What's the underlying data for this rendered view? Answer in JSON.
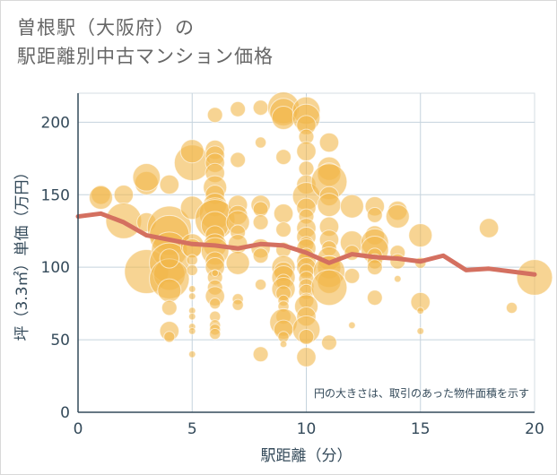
{
  "title": {
    "line1": "曽根駅（大阪府）の",
    "line2": "駅距離別中古マンション価格"
  },
  "chart_data": {
    "type": "scatter",
    "xlabel": "駅距離（分）",
    "ylabel": "坪（3.3㎡）単価（万円）",
    "xlim": [
      0,
      20
    ],
    "ylim": [
      0,
      220
    ],
    "xticks": [
      "0",
      "5",
      "10",
      "15",
      "20"
    ],
    "yticks": [
      "0",
      "50",
      "100",
      "150",
      "200"
    ],
    "grid": true,
    "note": "円の大きさは、取引のあった物件面積を示す",
    "colors": {
      "bubble": "#f2b84b",
      "line": "#d47060"
    },
    "bubbles": [
      {
        "x": 1,
        "y": 150,
        "s": 4
      },
      {
        "x": 1,
        "y": 148,
        "s": 5
      },
      {
        "x": 2,
        "y": 150,
        "s": 4
      },
      {
        "x": 2,
        "y": 132,
        "s": 8
      },
      {
        "x": 3,
        "y": 97,
        "s": 10
      },
      {
        "x": 3,
        "y": 158,
        "s": 5
      },
      {
        "x": 3,
        "y": 162,
        "s": 6
      },
      {
        "x": 3,
        "y": 131,
        "s": 4
      },
      {
        "x": 4,
        "y": 127,
        "s": 10
      },
      {
        "x": 4,
        "y": 122,
        "s": 9
      },
      {
        "x": 4,
        "y": 112,
        "s": 8
      },
      {
        "x": 4,
        "y": 103,
        "s": 9
      },
      {
        "x": 4,
        "y": 95,
        "s": 7
      },
      {
        "x": 4,
        "y": 92,
        "s": 9
      },
      {
        "x": 4,
        "y": 84,
        "s": 5
      },
      {
        "x": 4,
        "y": 72,
        "s": 3
      },
      {
        "x": 4,
        "y": 56,
        "s": 4
      },
      {
        "x": 4,
        "y": 52,
        "s": 2
      },
      {
        "x": 4,
        "y": 157,
        "s": 4
      },
      {
        "x": 4,
        "y": 106,
        "s": 4
      },
      {
        "x": 5,
        "y": 172,
        "s": 8
      },
      {
        "x": 5,
        "y": 180,
        "s": 5
      },
      {
        "x": 5,
        "y": 141,
        "s": 5
      },
      {
        "x": 5,
        "y": 115,
        "s": 5
      },
      {
        "x": 5,
        "y": 113,
        "s": 4
      },
      {
        "x": 5,
        "y": 105,
        "s": 2
      },
      {
        "x": 5,
        "y": 85,
        "s": 1
      },
      {
        "x": 5,
        "y": 80,
        "s": 1
      },
      {
        "x": 5,
        "y": 70,
        "s": 1
      },
      {
        "x": 5,
        "y": 66,
        "s": 1
      },
      {
        "x": 5,
        "y": 59,
        "s": 1
      },
      {
        "x": 5,
        "y": 56,
        "s": 1
      },
      {
        "x": 5,
        "y": 40,
        "s": 1
      },
      {
        "x": 5,
        "y": 98,
        "s": 2
      },
      {
        "x": 6,
        "y": 205,
        "s": 3
      },
      {
        "x": 6,
        "y": 181,
        "s": 4
      },
      {
        "x": 6,
        "y": 177,
        "s": 4
      },
      {
        "x": 6,
        "y": 172,
        "s": 4
      },
      {
        "x": 6,
        "y": 165,
        "s": 4
      },
      {
        "x": 6,
        "y": 155,
        "s": 5
      },
      {
        "x": 6,
        "y": 150,
        "s": 4
      },
      {
        "x": 6,
        "y": 143,
        "s": 5
      },
      {
        "x": 6,
        "y": 137,
        "s": 7
      },
      {
        "x": 6,
        "y": 133,
        "s": 9
      },
      {
        "x": 6,
        "y": 129,
        "s": 6
      },
      {
        "x": 6,
        "y": 122,
        "s": 4
      },
      {
        "x": 6,
        "y": 115,
        "s": 5
      },
      {
        "x": 6,
        "y": 111,
        "s": 6
      },
      {
        "x": 6,
        "y": 104,
        "s": 4
      },
      {
        "x": 6,
        "y": 100,
        "s": 4
      },
      {
        "x": 6,
        "y": 93,
        "s": 3
      },
      {
        "x": 6,
        "y": 86,
        "s": 3
      },
      {
        "x": 6,
        "y": 80,
        "s": 4
      },
      {
        "x": 6,
        "y": 75,
        "s": 2
      },
      {
        "x": 6,
        "y": 66,
        "s": 2
      },
      {
        "x": 6,
        "y": 60,
        "s": 2
      },
      {
        "x": 6,
        "y": 57,
        "s": 2
      },
      {
        "x": 6,
        "y": 54,
        "s": 2
      },
      {
        "x": 6,
        "y": 96,
        "s": 1
      },
      {
        "x": 7,
        "y": 209,
        "s": 3
      },
      {
        "x": 7,
        "y": 174,
        "s": 3
      },
      {
        "x": 7,
        "y": 143,
        "s": 4
      },
      {
        "x": 7,
        "y": 136,
        "s": 4
      },
      {
        "x": 7,
        "y": 131,
        "s": 5
      },
      {
        "x": 7,
        "y": 124,
        "s": 3
      },
      {
        "x": 7,
        "y": 116,
        "s": 4
      },
      {
        "x": 7,
        "y": 103,
        "s": 5
      },
      {
        "x": 7,
        "y": 78,
        "s": 2
      },
      {
        "x": 7,
        "y": 74,
        "s": 2
      },
      {
        "x": 8,
        "y": 210,
        "s": 3
      },
      {
        "x": 8,
        "y": 186,
        "s": 2
      },
      {
        "x": 8,
        "y": 143,
        "s": 4
      },
      {
        "x": 8,
        "y": 140,
        "s": 3
      },
      {
        "x": 8,
        "y": 131,
        "s": 3
      },
      {
        "x": 8,
        "y": 113,
        "s": 4
      },
      {
        "x": 8,
        "y": 108,
        "s": 3
      },
      {
        "x": 8,
        "y": 88,
        "s": 2
      },
      {
        "x": 8,
        "y": 40,
        "s": 3
      },
      {
        "x": 9,
        "y": 210,
        "s": 7
      },
      {
        "x": 9,
        "y": 207,
        "s": 6
      },
      {
        "x": 9,
        "y": 203,
        "s": 5
      },
      {
        "x": 9,
        "y": 176,
        "s": 3
      },
      {
        "x": 9,
        "y": 137,
        "s": 4
      },
      {
        "x": 9,
        "y": 126,
        "s": 3
      },
      {
        "x": 9,
        "y": 112,
        "s": 3
      },
      {
        "x": 9,
        "y": 100,
        "s": 5
      },
      {
        "x": 9,
        "y": 97,
        "s": 4
      },
      {
        "x": 9,
        "y": 93,
        "s": 5
      },
      {
        "x": 9,
        "y": 90,
        "s": 3
      },
      {
        "x": 9,
        "y": 85,
        "s": 5
      },
      {
        "x": 9,
        "y": 82,
        "s": 3
      },
      {
        "x": 9,
        "y": 77,
        "s": 2
      },
      {
        "x": 9,
        "y": 73,
        "s": 2
      },
      {
        "x": 9,
        "y": 66,
        "s": 3
      },
      {
        "x": 9,
        "y": 62,
        "s": 6
      },
      {
        "x": 9,
        "y": 57,
        "s": 4
      },
      {
        "x": 9,
        "y": 52,
        "s": 2
      },
      {
        "x": 9,
        "y": 47,
        "s": 1
      },
      {
        "x": 10,
        "y": 208,
        "s": 6
      },
      {
        "x": 10,
        "y": 203,
        "s": 6
      },
      {
        "x": 10,
        "y": 198,
        "s": 4
      },
      {
        "x": 10,
        "y": 190,
        "s": 3
      },
      {
        "x": 10,
        "y": 180,
        "s": 4
      },
      {
        "x": 10,
        "y": 168,
        "s": 3
      },
      {
        "x": 10,
        "y": 157,
        "s": 4
      },
      {
        "x": 10,
        "y": 149,
        "s": 6
      },
      {
        "x": 10,
        "y": 141,
        "s": 4
      },
      {
        "x": 10,
        "y": 135,
        "s": 3
      },
      {
        "x": 10,
        "y": 127,
        "s": 4
      },
      {
        "x": 10,
        "y": 121,
        "s": 4
      },
      {
        "x": 10,
        "y": 116,
        "s": 3
      },
      {
        "x": 10,
        "y": 113,
        "s": 4
      },
      {
        "x": 10,
        "y": 108,
        "s": 3
      },
      {
        "x": 10,
        "y": 104,
        "s": 4
      },
      {
        "x": 10,
        "y": 100,
        "s": 4
      },
      {
        "x": 10,
        "y": 97,
        "s": 3
      },
      {
        "x": 10,
        "y": 92,
        "s": 3
      },
      {
        "x": 10,
        "y": 87,
        "s": 3
      },
      {
        "x": 10,
        "y": 83,
        "s": 3
      },
      {
        "x": 10,
        "y": 77,
        "s": 3
      },
      {
        "x": 10,
        "y": 73,
        "s": 5
      },
      {
        "x": 10,
        "y": 66,
        "s": 4
      },
      {
        "x": 10,
        "y": 57,
        "s": 6
      },
      {
        "x": 10,
        "y": 52,
        "s": 3
      },
      {
        "x": 10,
        "y": 38,
        "s": 4
      },
      {
        "x": 11,
        "y": 186,
        "s": 4
      },
      {
        "x": 11,
        "y": 168,
        "s": 5
      },
      {
        "x": 11,
        "y": 164,
        "s": 5
      },
      {
        "x": 11,
        "y": 159,
        "s": 8
      },
      {
        "x": 11,
        "y": 149,
        "s": 4
      },
      {
        "x": 11,
        "y": 143,
        "s": 5
      },
      {
        "x": 11,
        "y": 128,
        "s": 4
      },
      {
        "x": 11,
        "y": 119,
        "s": 4
      },
      {
        "x": 11,
        "y": 113,
        "s": 3
      },
      {
        "x": 11,
        "y": 106,
        "s": 5
      },
      {
        "x": 11,
        "y": 100,
        "s": 5
      },
      {
        "x": 11,
        "y": 97,
        "s": 7
      },
      {
        "x": 11,
        "y": 90,
        "s": 5
      },
      {
        "x": 11,
        "y": 86,
        "s": 8
      },
      {
        "x": 11,
        "y": 48,
        "s": 3
      },
      {
        "x": 12,
        "y": 142,
        "s": 5
      },
      {
        "x": 12,
        "y": 117,
        "s": 5
      },
      {
        "x": 12,
        "y": 110,
        "s": 3
      },
      {
        "x": 12,
        "y": 94,
        "s": 3
      },
      {
        "x": 12,
        "y": 60,
        "s": 1
      },
      {
        "x": 13,
        "y": 142,
        "s": 4
      },
      {
        "x": 13,
        "y": 136,
        "s": 3
      },
      {
        "x": 13,
        "y": 122,
        "s": 4
      },
      {
        "x": 13,
        "y": 117,
        "s": 6
      },
      {
        "x": 13,
        "y": 112,
        "s": 6
      },
      {
        "x": 13,
        "y": 108,
        "s": 3
      },
      {
        "x": 13,
        "y": 104,
        "s": 3
      },
      {
        "x": 13,
        "y": 100,
        "s": 3
      },
      {
        "x": 13,
        "y": 79,
        "s": 3
      },
      {
        "x": 14,
        "y": 139,
        "s": 4
      },
      {
        "x": 14,
        "y": 135,
        "s": 5
      },
      {
        "x": 14,
        "y": 110,
        "s": 3
      },
      {
        "x": 14,
        "y": 104,
        "s": 3
      },
      {
        "x": 14,
        "y": 92,
        "s": 1
      },
      {
        "x": 15,
        "y": 122,
        "s": 5
      },
      {
        "x": 15,
        "y": 103,
        "s": 2
      },
      {
        "x": 15,
        "y": 76,
        "s": 4
      },
      {
        "x": 15,
        "y": 70,
        "s": 1
      },
      {
        "x": 15,
        "y": 56,
        "s": 1
      },
      {
        "x": 18,
        "y": 127,
        "s": 4
      },
      {
        "x": 19,
        "y": 72,
        "s": 2
      },
      {
        "x": 20,
        "y": 93,
        "s": 8
      }
    ],
    "trend": {
      "x": [
        0,
        1,
        2,
        3,
        4,
        5,
        6,
        7,
        8,
        9,
        10,
        11,
        12,
        13,
        14,
        15,
        16,
        17,
        18,
        19,
        20
      ],
      "y": [
        135,
        137,
        131,
        122,
        119,
        116,
        115,
        113,
        116,
        115,
        110,
        103,
        109,
        107,
        106,
        104,
        108,
        98,
        99,
        97,
        95
      ]
    }
  }
}
